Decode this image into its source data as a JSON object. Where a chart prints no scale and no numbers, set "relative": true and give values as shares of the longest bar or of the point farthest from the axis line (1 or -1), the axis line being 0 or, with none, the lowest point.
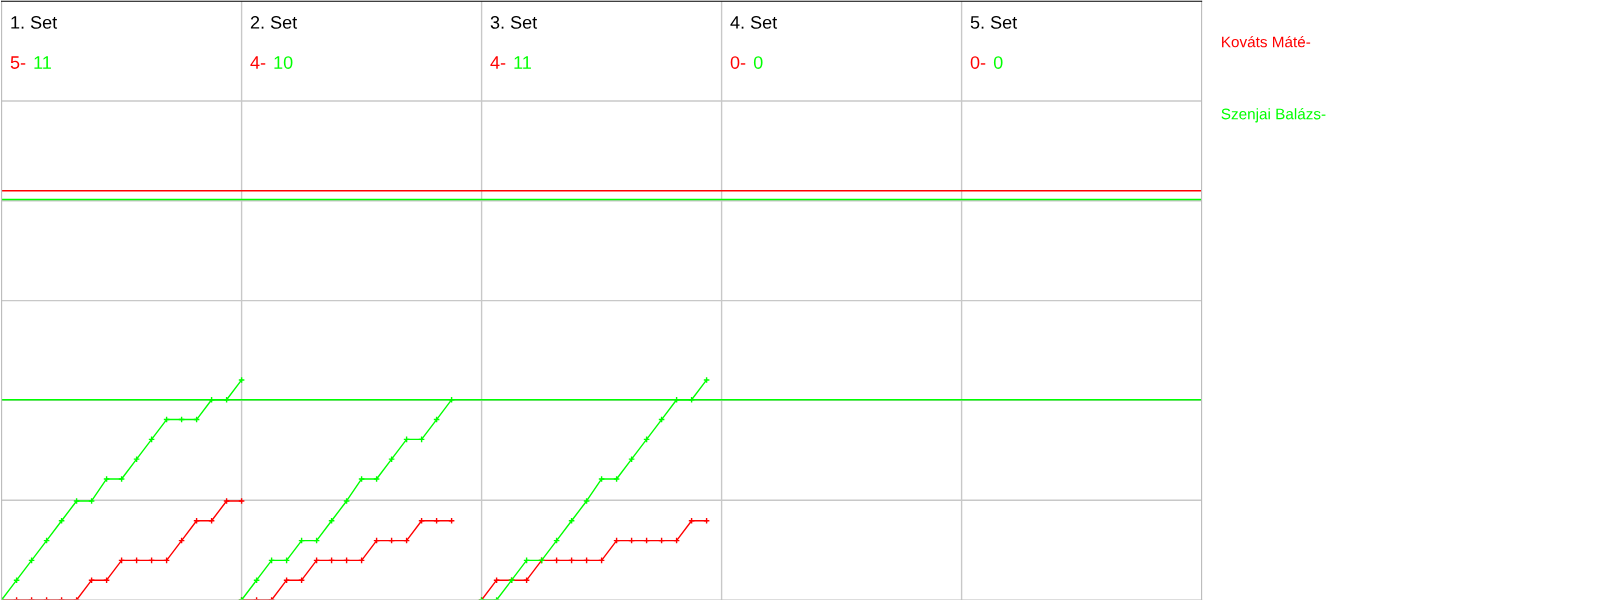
{
  "chart_data": {
    "type": "line",
    "relative": true,
    "grid": true,
    "marker": "cross",
    "categories": [
      null,
      null,
      null,
      null,
      null,
      null,
      null,
      null,
      null,
      null,
      null,
      null,
      null,
      null,
      null,
      null,
      null,
      null,
      null,
      null,
      null,
      null,
      null,
      null,
      null,
      null,
      null,
      null,
      null,
      null,
      null,
      null,
      null,
      null,
      null,
      null,
      null,
      null,
      null,
      null,
      null,
      null,
      null,
      null,
      null,
      null,
      null,
      null,
      null,
      null,
      null,
      null,
      null,
      null,
      null,
      null,
      null,
      null,
      null,
      null,
      null,
      null,
      null,
      null,
      null,
      null,
      null,
      null,
      null,
      null,
      null,
      null,
      null,
      null,
      null,
      null,
      null,
      null,
      null,
      null,
      null
    ],
    "annotations": [
      "1. Set",
      "5-",
      "11",
      "2. Set",
      "4-",
      "10",
      "3. Set",
      "4-",
      "11",
      "4. Set",
      "0-",
      "0",
      "5. Set",
      "0-",
      "0"
    ],
    "ref_lines": [
      {
        "axis": "y",
        "value": 1.86,
        "color": "#ff0000"
      },
      {
        "axis": "y",
        "value": 1.82,
        "color": "#00ff00"
      },
      {
        "axis": "y",
        "value": 0.91,
        "color": "#00ff00"
      }
    ],
    "series": [
      {
        "name": "Kováts Máté-",
        "color": "#ff0000",
        "values": [
          0,
          0,
          0,
          0,
          0,
          0,
          0.09,
          0.09,
          0.18,
          0.18,
          0.18,
          0.18,
          0.27,
          0.36,
          0.36,
          0.45,
          0.45,
          null,
          null,
          null,
          null,
          null,
          null,
          null,
          null,
          null,
          null,
          null,
          null,
          null,
          null,
          null,
          null,
          null,
          null,
          null,
          null,
          null,
          null,
          null,
          null,
          null,
          null,
          null,
          null,
          null,
          null,
          null,
          null,
          null,
          null,
          null,
          null,
          null,
          null,
          null,
          null,
          null,
          null,
          null,
          null,
          null,
          null,
          null,
          null,
          null,
          null,
          null,
          null,
          null,
          null,
          null,
          null,
          null,
          null,
          null,
          null,
          null,
          null,
          null,
          null
        ]
      },
      {
        "name": "Szenjai Balázs-",
        "color": "#00ff00",
        "values": [
          0,
          0.09,
          0.18,
          0.27,
          0.36,
          0.45,
          0.45,
          0.55,
          0.55,
          0.64,
          0.73,
          0.82,
          0.82,
          0.82,
          0.91,
          0.91,
          1,
          null,
          null,
          null,
          null,
          null,
          null,
          null,
          null,
          null,
          null,
          null,
          null,
          null,
          null,
          null,
          null,
          null,
          null,
          null,
          null,
          null,
          null,
          null,
          null,
          null,
          null,
          null,
          null,
          null,
          null,
          null,
          null,
          null,
          null,
          null,
          null,
          null,
          null,
          null,
          null,
          null,
          null,
          null,
          null,
          null,
          null,
          null,
          null,
          null,
          null,
          null,
          null,
          null,
          null,
          null,
          null,
          null,
          null,
          null,
          null,
          null,
          null,
          null,
          null
        ]
      },
      {
        "color": "#ff0000",
        "values": [
          null,
          null,
          null,
          null,
          null,
          null,
          null,
          null,
          null,
          null,
          null,
          null,
          null,
          null,
          null,
          null,
          0,
          0,
          0,
          0.09,
          0.09,
          0.18,
          0.18,
          0.18,
          0.18,
          0.27,
          0.27,
          0.27,
          0.36,
          0.36,
          0.36,
          null,
          null,
          null,
          null,
          null,
          null,
          null,
          null,
          null,
          null,
          null,
          null,
          null,
          null,
          null,
          null,
          null,
          null,
          null,
          null,
          null,
          null,
          null,
          null,
          null,
          null,
          null,
          null,
          null,
          null,
          null,
          null,
          null,
          null,
          null,
          null,
          null,
          null,
          null,
          null,
          null,
          null,
          null,
          null,
          null,
          null,
          null,
          null,
          null,
          null
        ]
      },
      {
        "color": "#00ff00",
        "values": [
          null,
          null,
          null,
          null,
          null,
          null,
          null,
          null,
          null,
          null,
          null,
          null,
          null,
          null,
          null,
          null,
          0,
          0.09,
          0.18,
          0.18,
          0.27,
          0.27,
          0.36,
          0.45,
          0.55,
          0.55,
          0.64,
          0.73,
          0.73,
          0.82,
          0.91,
          null,
          null,
          null,
          null,
          null,
          null,
          null,
          null,
          null,
          null,
          null,
          null,
          null,
          null,
          null,
          null,
          null,
          null,
          null,
          null,
          null,
          null,
          null,
          null,
          null,
          null,
          null,
          null,
          null,
          null,
          null,
          null,
          null,
          null,
          null,
          null,
          null,
          null,
          null,
          null,
          null,
          null,
          null,
          null,
          null,
          null,
          null,
          null,
          null,
          null
        ]
      },
      {
        "color": "#ff0000",
        "values": [
          null,
          null,
          null,
          null,
          null,
          null,
          null,
          null,
          null,
          null,
          null,
          null,
          null,
          null,
          null,
          null,
          null,
          null,
          null,
          null,
          null,
          null,
          null,
          null,
          null,
          null,
          null,
          null,
          null,
          null,
          null,
          null,
          0,
          0.09,
          0.09,
          0.09,
          0.18,
          0.18,
          0.18,
          0.18,
          0.18,
          0.27,
          0.27,
          0.27,
          0.27,
          0.27,
          0.36,
          0.36,
          null,
          null,
          null,
          null,
          null,
          null,
          null,
          null,
          null,
          null,
          null,
          null,
          null,
          null,
          null,
          null,
          null,
          null,
          null,
          null,
          null,
          null,
          null,
          null,
          null,
          null,
          null,
          null,
          null,
          null,
          null,
          null,
          null
        ]
      },
      {
        "color": "#00ff00",
        "values": [
          null,
          null,
          null,
          null,
          null,
          null,
          null,
          null,
          null,
          null,
          null,
          null,
          null,
          null,
          null,
          null,
          null,
          null,
          null,
          null,
          null,
          null,
          null,
          null,
          null,
          null,
          null,
          null,
          null,
          null,
          null,
          null,
          0,
          0,
          0.09,
          0.18,
          0.18,
          0.27,
          0.36,
          0.45,
          0.55,
          0.55,
          0.64,
          0.73,
          0.82,
          0.91,
          0.91,
          1,
          null,
          null,
          null,
          null,
          null,
          null,
          null,
          null,
          null,
          null,
          null,
          null,
          null,
          null,
          null,
          null,
          null,
          null,
          null,
          null,
          null,
          null,
          null,
          null,
          null,
          null,
          null,
          null,
          null,
          null,
          null,
          null,
          null
        ]
      }
    ]
  }
}
